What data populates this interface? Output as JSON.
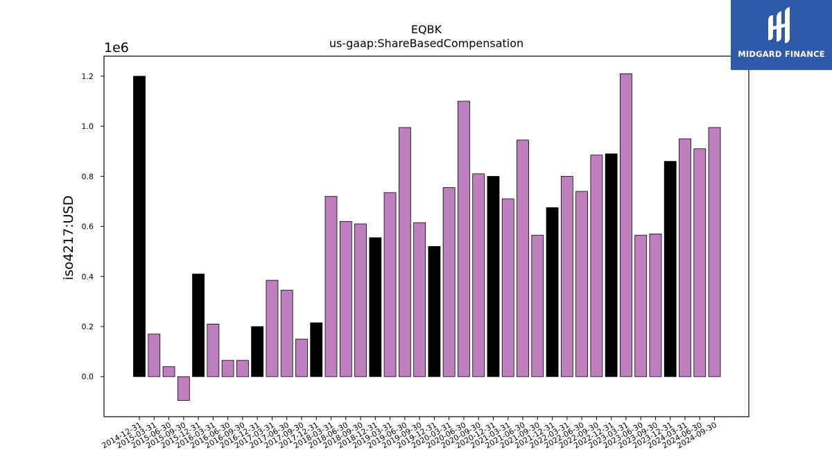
{
  "chart_data": {
    "type": "bar",
    "title": "EQBK",
    "subtitle": "us-gaap:ShareBasedCompensation",
    "ylabel": "iso4217:USD",
    "xlabel": "",
    "y_multiplier_label": "1e6",
    "ylim": [
      -0.16,
      1.28
    ],
    "yticks": [
      0.0,
      0.2,
      0.4,
      0.6,
      0.8,
      1.0,
      1.2
    ],
    "ytick_labels": [
      "0.0",
      "0.2",
      "0.4",
      "0.6",
      "0.8",
      "1.0",
      "1.2"
    ],
    "grid": false,
    "categories": [
      "2014-12-31",
      "2015-03-31",
      "2015-06-30",
      "2015-09-30",
      "2015-12-31",
      "2016-03-31",
      "2016-06-30",
      "2016-09-30",
      "2016-12-31",
      "2017-03-31",
      "2017-06-30",
      "2017-09-30",
      "2017-12-31",
      "2018-03-31",
      "2018-06-30",
      "2018-09-30",
      "2018-12-31",
      "2019-03-31",
      "2019-06-30",
      "2019-09-30",
      "2019-12-31",
      "2020-03-31",
      "2020-06-30",
      "2020-09-30",
      "2020-12-31",
      "2021-03-31",
      "2021-06-30",
      "2021-09-30",
      "2021-12-31",
      "2022-03-31",
      "2022-06-30",
      "2022-09-30",
      "2022-12-31",
      "2023-03-31",
      "2023-06-30",
      "2023-09-30",
      "2023-12-31",
      "2024-03-31",
      "2024-06-30",
      "2024-09-30"
    ],
    "values": [
      1.2,
      0.17,
      0.04,
      -0.095,
      0.41,
      0.21,
      0.065,
      0.065,
      0.2,
      0.385,
      0.345,
      0.15,
      0.215,
      0.72,
      0.62,
      0.61,
      0.555,
      0.735,
      0.995,
      0.615,
      0.52,
      0.755,
      1.1,
      0.81,
      0.8,
      0.71,
      0.945,
      0.565,
      0.675,
      0.8,
      0.74,
      0.885,
      0.89,
      1.21,
      0.565,
      0.57,
      0.86,
      0.95,
      0.91,
      0.995
    ],
    "bar_colors": [
      "#000000",
      "#bf7fbf",
      "#bf7fbf",
      "#bf7fbf",
      "#000000",
      "#bf7fbf",
      "#bf7fbf",
      "#bf7fbf",
      "#000000",
      "#bf7fbf",
      "#bf7fbf",
      "#bf7fbf",
      "#000000",
      "#bf7fbf",
      "#bf7fbf",
      "#bf7fbf",
      "#000000",
      "#bf7fbf",
      "#bf7fbf",
      "#bf7fbf",
      "#000000",
      "#bf7fbf",
      "#bf7fbf",
      "#bf7fbf",
      "#000000",
      "#bf7fbf",
      "#bf7fbf",
      "#bf7fbf",
      "#000000",
      "#bf7fbf",
      "#bf7fbf",
      "#bf7fbf",
      "#000000",
      "#bf7fbf",
      "#bf7fbf",
      "#bf7fbf",
      "#000000",
      "#bf7fbf",
      "#bf7fbf",
      "#bf7fbf"
    ]
  },
  "logo": {
    "text": "MIDGARD FINANCE",
    "background": "#2e5aa8"
  },
  "colors": {
    "quarterly_bar": "#bf7fbf",
    "annual_bar": "#000000"
  }
}
